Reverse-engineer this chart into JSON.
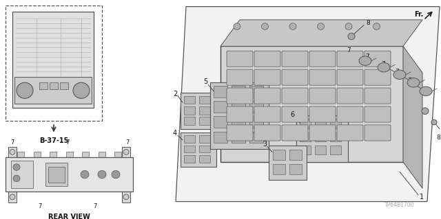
{
  "bg_color": "#ffffff",
  "line_color": "#333333",
  "part_label_fs": 6.5,
  "rear_view_label": "REAR VIEW",
  "ref_label": "B-37-15",
  "code_label": "TP64B1700",
  "fr_label": "Fr."
}
